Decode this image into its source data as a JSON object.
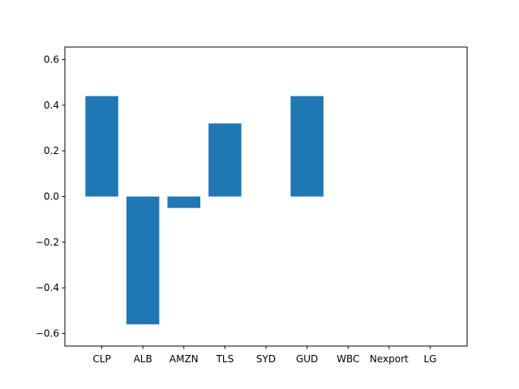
{
  "chart_data": {
    "type": "bar",
    "categories": [
      "CLP",
      "ALB",
      "AMZN",
      "TLS",
      "SYD",
      "GUD",
      "WBC",
      "Nexport",
      "LG"
    ],
    "values": [
      0.44,
      -0.56,
      -0.05,
      0.32,
      0.0,
      0.44,
      0.0,
      0.0,
      0.0
    ],
    "title": "",
    "xlabel": "",
    "ylabel": "",
    "ylim": [
      -0.655,
      0.655
    ],
    "yticks": [
      0.6,
      0.4,
      0.2,
      0.0,
      -0.2,
      -0.4,
      -0.6
    ],
    "ytick_labels": [
      "0.6",
      "0.4",
      "0.2",
      "0.0",
      "−0.2",
      "−0.4",
      "−0.6"
    ],
    "bar_color": "#1f77b4",
    "grid": false,
    "legend": "none"
  }
}
